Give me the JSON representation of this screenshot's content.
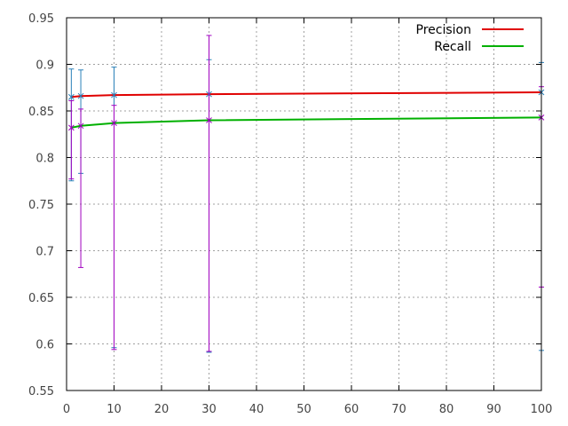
{
  "chart_data": {
    "type": "line",
    "title": "",
    "xlabel": "",
    "ylabel": "",
    "xlim": [
      0,
      100
    ],
    "ylim": [
      0.55,
      0.95
    ],
    "xticks": [
      0,
      10,
      20,
      30,
      40,
      50,
      60,
      70,
      80,
      90,
      100
    ],
    "yticks": [
      0.55,
      0.6,
      0.65,
      0.7,
      0.75,
      0.8,
      0.85,
      0.9,
      0.95
    ],
    "xtick_labels": [
      "0",
      "10",
      "20",
      "30",
      "40",
      "50",
      "60",
      "70",
      "80",
      "90",
      "100"
    ],
    "ytick_labels": [
      "0.55",
      "0.6",
      "0.65",
      "0.7",
      "0.75",
      "0.8",
      "0.85",
      "0.9",
      "0.95"
    ],
    "grid": true,
    "legend": "top-right",
    "series": [
      {
        "name": "Precision",
        "color": "#e00000",
        "x": [
          1,
          3,
          10,
          30,
          100
        ],
        "y": [
          0.865,
          0.866,
          0.867,
          0.868,
          0.87
        ],
        "error_color": "#2a80b9",
        "error_low": [
          0.775,
          0.783,
          0.596,
          0.591,
          0.593
        ],
        "error_high": [
          0.895,
          0.894,
          0.897,
          0.905,
          0.902
        ]
      },
      {
        "name": "Recall",
        "color": "#00b000",
        "x": [
          1,
          3,
          10,
          30,
          100
        ],
        "y": [
          0.832,
          0.834,
          0.837,
          0.84,
          0.843
        ],
        "error_color": "#a000c0",
        "error_low": [
          0.777,
          0.682,
          0.594,
          0.592,
          0.661
        ],
        "error_high": [
          0.861,
          0.852,
          0.856,
          0.931,
          0.876
        ]
      }
    ]
  }
}
